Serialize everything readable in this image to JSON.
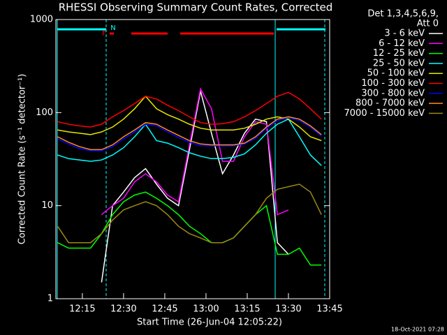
{
  "chart_data": {
    "type": "line",
    "title": "RHESSI Observing Summary Count Rates, Corrected",
    "xlabel": "Start Time (26-Jun-04 12:05:22)",
    "ylabel": "Corrected Count Rate (s⁻¹ detector⁻¹)",
    "legend_title": [
      "Det 1,3,4,5,6,9,",
      "Att 0"
    ],
    "legend": "right",
    "footer": "18-Oct-2021 07:28",
    "flags": [
      "F",
      "N"
    ],
    "log_y": true,
    "xlim": [
      "12:05:22",
      "13:45"
    ],
    "xticks": [
      "12:15",
      "12:30",
      "12:45",
      "13:00",
      "13:15",
      "13:30",
      "13:45"
    ],
    "ylim": [
      1,
      1000
    ],
    "yticks": [
      1,
      10,
      100,
      1000
    ],
    "x": [
      "12:06",
      "12:10",
      "12:14",
      "12:18",
      "12:22",
      "12:26",
      "12:30",
      "12:34",
      "12:38",
      "12:42",
      "12:46",
      "12:50",
      "12:54",
      "12:58",
      "13:02",
      "13:06",
      "13:10",
      "13:14",
      "13:18",
      "13:22",
      "13:26",
      "13:30",
      "13:34",
      "13:38",
      "13:42"
    ],
    "series": [
      {
        "name": "3 - 6 keV",
        "color": "#ffffff",
        "values": [
          null,
          null,
          null,
          null,
          1.5,
          10,
          14,
          20,
          25,
          17,
          12,
          10,
          40,
          170,
          60,
          22,
          35,
          60,
          85,
          80,
          4,
          3,
          null,
          null,
          null
        ]
      },
      {
        "name": "6 - 12 keV",
        "color": "#ff00ff",
        "values": [
          null,
          null,
          null,
          null,
          8,
          10,
          12,
          18,
          22,
          18,
          13,
          11,
          45,
          180,
          110,
          30,
          30,
          55,
          80,
          75,
          8,
          9,
          null,
          null,
          null
        ]
      },
      {
        "name": "12 - 25 keV",
        "color": "#00ff00",
        "values": [
          4,
          3.5,
          3.5,
          3.5,
          5,
          8,
          11,
          13,
          14,
          12,
          10,
          8,
          6,
          5,
          4,
          4,
          4.5,
          6,
          8,
          10,
          3,
          3,
          3.5,
          2.3,
          2.3
        ]
      },
      {
        "name": "25 - 50 keV",
        "color": "#00ffff",
        "values": [
          35,
          32,
          31,
          30,
          31,
          35,
          42,
          55,
          75,
          50,
          47,
          42,
          37,
          34,
          32,
          32,
          33,
          36,
          45,
          60,
          75,
          85,
          55,
          35,
          27
        ]
      },
      {
        "name": "50 - 100 keV",
        "color": "#e6e600",
        "values": [
          65,
          62,
          60,
          58,
          62,
          70,
          85,
          110,
          150,
          110,
          95,
          85,
          75,
          68,
          65,
          65,
          65,
          68,
          75,
          85,
          90,
          85,
          70,
          55,
          50
        ]
      },
      {
        "name": "100 - 300 keV",
        "color": "#ff0000",
        "values": [
          80,
          75,
          72,
          70,
          75,
          90,
          105,
          125,
          150,
          140,
          120,
          105,
          90,
          78,
          75,
          76,
          80,
          90,
          105,
          125,
          150,
          165,
          140,
          110,
          85
        ]
      },
      {
        "name": "300 - 800 keV",
        "color": "#0000ff",
        "values": [
          52,
          46,
          41,
          39,
          39,
          43,
          52,
          62,
          75,
          72,
          62,
          54,
          48,
          44,
          44,
          44,
          44,
          46,
          53,
          68,
          82,
          88,
          82,
          70,
          56
        ]
      },
      {
        "name": "800 - 7000 keV",
        "color": "#ff8c1a",
        "values": [
          55,
          48,
          43,
          40,
          40,
          45,
          55,
          65,
          78,
          75,
          65,
          57,
          50,
          46,
          45,
          45,
          45,
          47,
          55,
          70,
          85,
          90,
          85,
          72,
          58
        ]
      },
      {
        "name": "7000 - 15000 keV",
        "color": "#9a8a10",
        "values": [
          6,
          4,
          4,
          4,
          5,
          7,
          9,
          10,
          11,
          10,
          8,
          6,
          5,
          4.5,
          4,
          4,
          4.5,
          6,
          8,
          12,
          15,
          16,
          17,
          14,
          8
        ]
      }
    ]
  }
}
